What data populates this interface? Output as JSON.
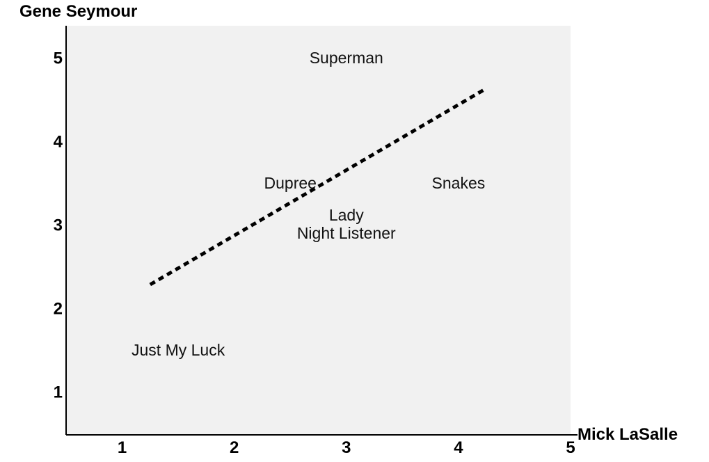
{
  "chart_data": {
    "type": "scatter",
    "xlabel": "Mick LaSalle",
    "ylabel": "Gene Seymour",
    "xlim": [
      0.5,
      5.0
    ],
    "ylim": [
      0.5,
      5.4
    ],
    "xticks": [
      1,
      2,
      3,
      4,
      5
    ],
    "yticks": [
      1,
      2,
      3,
      4,
      5
    ],
    "grid": false,
    "background": "#f1f1f1",
    "points": [
      {
        "label": "Superman",
        "x": 3.0,
        "y": 5.0
      },
      {
        "label": "Dupree",
        "x": 2.5,
        "y": 3.5
      },
      {
        "label": "Snakes",
        "x": 4.0,
        "y": 3.5
      },
      {
        "label": "Lady",
        "x": 3.0,
        "y": 3.0
      },
      {
        "label": "Night Listener",
        "x": 3.0,
        "y": 3.0
      },
      {
        "label": "Just My Luck",
        "x": 1.5,
        "y": 1.5
      }
    ],
    "trendline": {
      "style": "dotted",
      "x": [
        1.25,
        4.25
      ],
      "y": [
        2.3,
        4.65
      ]
    }
  }
}
